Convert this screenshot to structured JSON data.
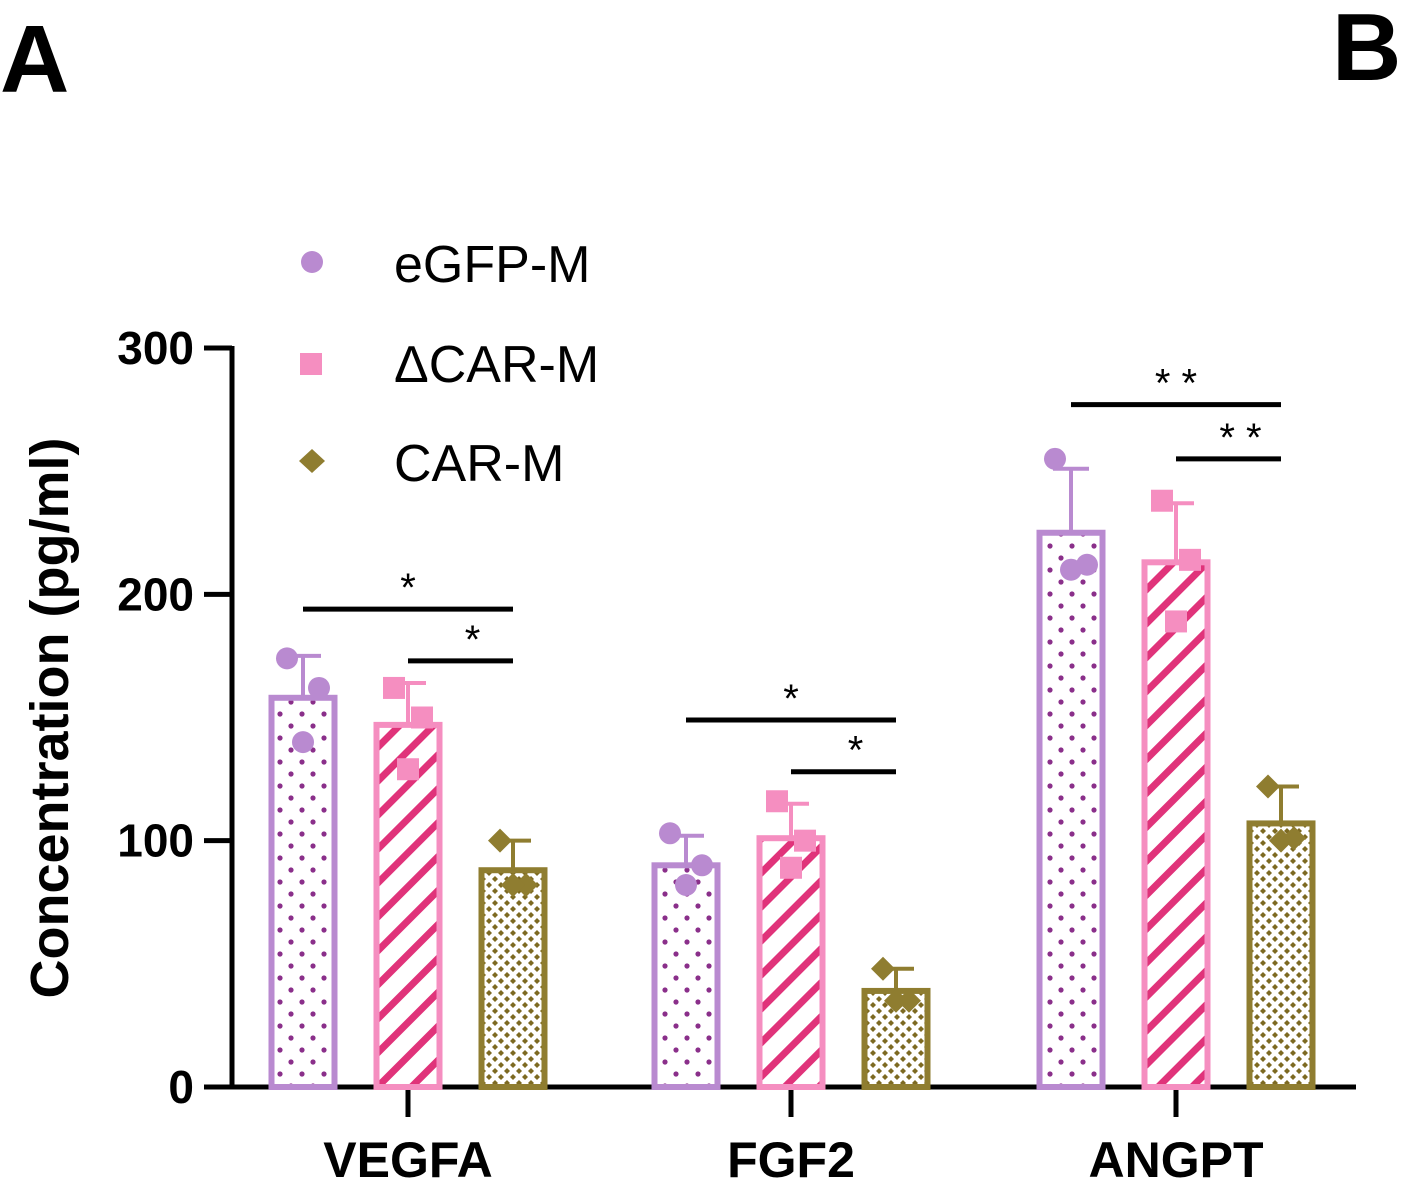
{
  "panel_labels": [
    "A",
    "B"
  ],
  "chart_data": {
    "type": "bar",
    "ylabel": "Concentration (pg/ml)",
    "xlabel": "",
    "ylim": [
      0,
      300
    ],
    "yticks": [
      "0",
      "100",
      "200",
      "300"
    ],
    "categories": [
      "VEGFA",
      "FGF2",
      "ANGPT"
    ],
    "legend_position": "top-left",
    "series": [
      {
        "name": "eGFP-M",
        "color": "#b98ad0",
        "fill_pattern": "dots",
        "marker": "circle",
        "values": [
          158,
          90,
          225
        ],
        "errors": [
          17,
          12,
          26
        ],
        "points": [
          [
            174,
            162,
            140
          ],
          [
            103,
            90,
            82
          ],
          [
            255,
            212,
            210
          ]
        ]
      },
      {
        "name": "ΔCAR-M",
        "color": "#f58ec0",
        "fill_pattern": "diagonal-lines",
        "marker": "square",
        "values": [
          147,
          101,
          213
        ],
        "errors": [
          17,
          14,
          24
        ],
        "points": [
          [
            162,
            150,
            129
          ],
          [
            116,
            100,
            89
          ],
          [
            238,
            214,
            189
          ]
        ]
      },
      {
        "name": "CAR-M",
        "color": "#8f7d30",
        "fill_pattern": "small-diamonds",
        "marker": "diamond",
        "values": [
          88,
          39,
          107
        ],
        "errors": [
          12,
          9,
          15
        ],
        "points": [
          [
            100,
            82,
            82
          ],
          [
            48,
            35,
            35
          ],
          [
            122,
            101,
            100
          ]
        ]
      }
    ],
    "significance": [
      {
        "category": "VEGFA",
        "from_series": 0,
        "to_series": 2,
        "label": "*",
        "y": 194
      },
      {
        "category": "VEGFA",
        "from_series": 1,
        "to_series": 2,
        "label": "*",
        "y": 173
      },
      {
        "category": "FGF2",
        "from_series": 0,
        "to_series": 2,
        "label": "*",
        "y": 149
      },
      {
        "category": "FGF2",
        "from_series": 1,
        "to_series": 2,
        "label": "*",
        "y": 128
      },
      {
        "category": "ANGPT",
        "from_series": 0,
        "to_series": 2,
        "label": "* *",
        "y": 277
      },
      {
        "category": "ANGPT",
        "from_series": 1,
        "to_series": 2,
        "label": "* *",
        "y": 255
      }
    ]
  }
}
